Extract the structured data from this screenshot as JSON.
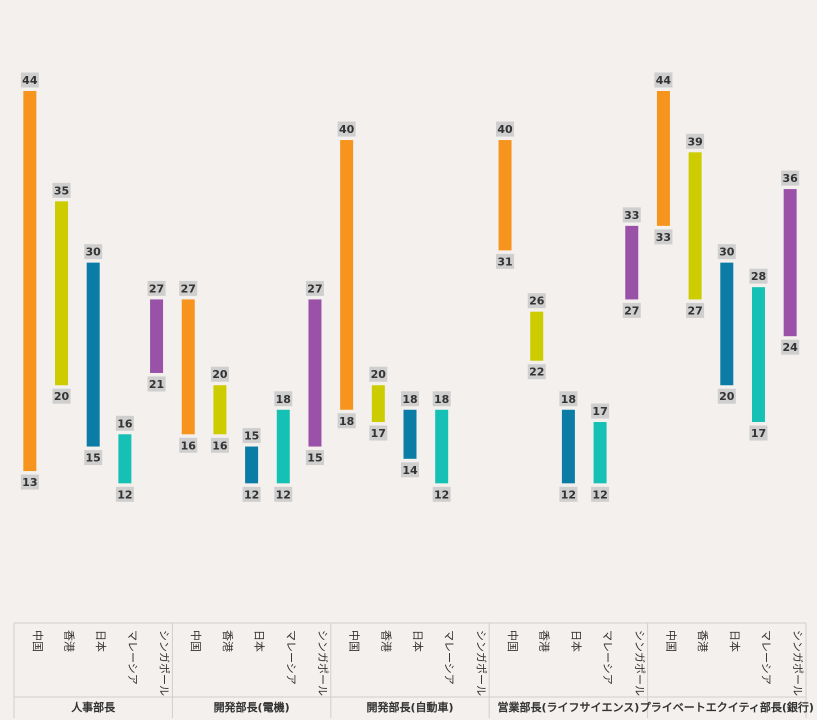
{
  "chart_data": {
    "type": "range-bar",
    "title": "",
    "xlabel": "",
    "ylabel": "",
    "ylim": [
      10,
      48
    ],
    "grid": false,
    "categories": [
      "中国",
      "香港",
      "日本",
      "マレーシア",
      "シンガポール"
    ],
    "colors": {
      "中国": "#f7941d",
      "香港": "#cccc00",
      "日本": "#0a7ca5",
      "マレーシア": "#14c1b4",
      "シンガポール": "#9a52a9"
    },
    "groups": [
      {
        "name": "人事部長",
        "bars": [
          {
            "category": "中国",
            "min": 13,
            "max": 44
          },
          {
            "category": "香港",
            "min": 20,
            "max": 35
          },
          {
            "category": "日本",
            "min": 15,
            "max": 30
          },
          {
            "category": "マレーシア",
            "min": 12,
            "max": 16
          },
          {
            "category": "シンガポール",
            "min": 21,
            "max": 27
          }
        ]
      },
      {
        "name": "開発部長(電機)",
        "bars": [
          {
            "category": "中国",
            "min": 16,
            "max": 27
          },
          {
            "category": "香港",
            "min": 16,
            "max": 20
          },
          {
            "category": "日本",
            "min": 12,
            "max": 15
          },
          {
            "category": "マレーシア",
            "min": 12,
            "max": 18
          },
          {
            "category": "シンガポール",
            "min": 15,
            "max": 27
          }
        ]
      },
      {
        "name": "開発部長(自動車)",
        "bars": [
          {
            "category": "中国",
            "min": 18,
            "max": 40
          },
          {
            "category": "香港",
            "min": 17,
            "max": 20
          },
          {
            "category": "日本",
            "min": 14,
            "max": 18
          },
          {
            "category": "マレーシア",
            "min": 12,
            "max": 18
          },
          {
            "category": "シンガポール",
            "min": null,
            "max": null
          }
        ]
      },
      {
        "name": "営業部長(ライフサイエンス)",
        "bars": [
          {
            "category": "中国",
            "min": 31,
            "max": 40
          },
          {
            "category": "香港",
            "min": 22,
            "max": 26
          },
          {
            "category": "日本",
            "min": 12,
            "max": 18
          },
          {
            "category": "マレーシア",
            "min": 12,
            "max": 17
          },
          {
            "category": "シンガポール",
            "min": 27,
            "max": 33
          }
        ]
      },
      {
        "name": "プライベートエクイティ部長(銀行)",
        "bars": [
          {
            "category": "中国",
            "min": 33,
            "max": 44
          },
          {
            "category": "香港",
            "min": 27,
            "max": 39
          },
          {
            "category": "日本",
            "min": 20,
            "max": 30
          },
          {
            "category": "マレーシア",
            "min": 17,
            "max": 28
          },
          {
            "category": "シンガポール",
            "min": 24,
            "max": 36
          }
        ]
      }
    ]
  }
}
